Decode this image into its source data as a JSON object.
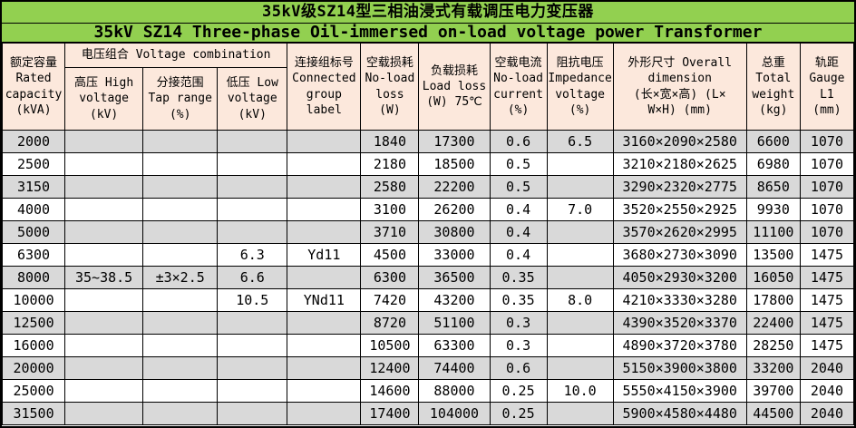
{
  "title": {
    "zh": "35kV级SZ14型三相油浸式有载调压电力变压器",
    "en": "35kV SZ14 Three-phase Oil-immersed on-load voltage power Transformer"
  },
  "header": {
    "rated_capacity": "额定容量\nRated\ncapacity\n(kVA)",
    "voltage_combination": "电压组合 Voltage combination",
    "high_voltage": "高压 High\nvoltage\n(kV)",
    "tap_range": "分接范围\nTap range\n(%)",
    "low_voltage": "低压 Low\nvoltage\n(kV)",
    "connected_group": "连接组标号\nConnected\ngroup\nlabel",
    "no_load_loss": "空载损耗\nNo-load\nloss\n(W)",
    "load_loss": "负载损耗\nLoad loss\n(W) 75℃",
    "no_load_current": "空载电流\nNo-load\ncurrent\n(%)",
    "impedance_voltage": "阻抗电压\nImpedance\nvoltage\n(%)",
    "overall_dimension": "外形尺寸 Overall\ndimension\n(长×宽×高) (L×\nW×H) (mm)",
    "total_weight": "总重\nTotal\nweight\n(kg)",
    "gauge": "轨距\nGauge\nL1\n(mm)"
  },
  "colors": {
    "title_background": "#92D050",
    "header_background": "#FCE8DC",
    "stripe_gray": "#D9D9D9",
    "stripe_white": "#FFFFFF",
    "border": "#000000"
  },
  "table": {
    "columns": [
      "rated_capacity",
      "high_voltage",
      "tap_range",
      "low_voltage",
      "connected_group",
      "no_load_loss",
      "load_loss",
      "no_load_current",
      "impedance_voltage",
      "overall_dimension",
      "total_weight",
      "gauge"
    ],
    "rows": [
      [
        "2000",
        "",
        "",
        "",
        "",
        "1840",
        "17300",
        "0.6",
        "6.5",
        "3160×2090×2580",
        "6600",
        "1070"
      ],
      [
        "2500",
        "",
        "",
        "",
        "",
        "2180",
        "18500",
        "0.5",
        "",
        "3210×2180×2625",
        "6980",
        "1070"
      ],
      [
        "3150",
        "",
        "",
        "",
        "",
        "2580",
        "22200",
        "0.5",
        "",
        "3290×2320×2775",
        "8650",
        "1070"
      ],
      [
        "4000",
        "",
        "",
        "",
        "",
        "3100",
        "26200",
        "0.4",
        "7.0",
        "3520×2550×2925",
        "9930",
        "1070"
      ],
      [
        "5000",
        "",
        "",
        "",
        "",
        "3710",
        "30800",
        "0.4",
        "",
        "3570×2620×2995",
        "11100",
        "1070"
      ],
      [
        "6300",
        "",
        "",
        "6.3",
        "Yd11",
        "4500",
        "33000",
        "0.4",
        "",
        "3680×2730×3090",
        "13500",
        "1475"
      ],
      [
        "8000",
        "35~38.5",
        "±3×2.5",
        "6.6",
        "",
        "6300",
        "36500",
        "0.35",
        "",
        "4050×2930×3200",
        "16050",
        "1475"
      ],
      [
        "10000",
        "",
        "",
        "10.5",
        "YNd11",
        "7420",
        "43200",
        "0.35",
        "8.0",
        "4210×3330×3280",
        "17800",
        "1475"
      ],
      [
        "12500",
        "",
        "",
        "",
        "",
        "8720",
        "51100",
        "0.3",
        "",
        "4390×3520×3370",
        "22400",
        "1475"
      ],
      [
        "16000",
        "",
        "",
        "",
        "",
        "10500",
        "63300",
        "0.3",
        "",
        "4890×3720×3780",
        "28250",
        "1475"
      ],
      [
        "20000",
        "",
        "",
        "",
        "",
        "12400",
        "74400",
        "0.6",
        "",
        "5150×3900×3800",
        "33200",
        "2040"
      ],
      [
        "25000",
        "",
        "",
        "",
        "",
        "14600",
        "88000",
        "0.25",
        "10.0",
        "5550×4150×3900",
        "39700",
        "2040"
      ],
      [
        "31500",
        "",
        "",
        "",
        "",
        "17400",
        "104000",
        "0.25",
        "",
        "5900×4580×4480",
        "44500",
        "2040"
      ]
    ]
  }
}
